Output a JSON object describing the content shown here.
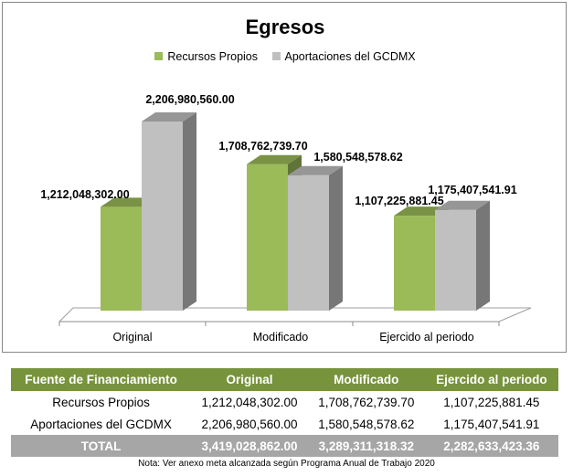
{
  "chart_data": {
    "type": "bar",
    "title": "Egresos",
    "categories": [
      "Original",
      "Modificado",
      "Ejercido al periodo"
    ],
    "series": [
      {
        "name": "Recursos Propios",
        "color": "#9bbb59",
        "values": [
          1212048302.0,
          1708762739.7,
          1107225881.45
        ],
        "labels": [
          "1,212,048,302.00",
          "1,708,762,739.70",
          "1,107,225,881.45"
        ]
      },
      {
        "name": "Aportaciones del GCDMX",
        "color": "#c0c0c0",
        "values": [
          2206980560.0,
          1580548578.62,
          1175407541.91
        ],
        "labels": [
          "2,206,980,560.00",
          "1,580,548,578.62",
          "1,175,407,541.91"
        ]
      }
    ],
    "ylim": [
      0,
      2400000000
    ],
    "grid": false,
    "legend_position": "top"
  },
  "table": {
    "headers": [
      "Fuente de Financiamiento",
      "Original",
      "Modificado",
      "Ejercido al periodo"
    ],
    "rows": [
      [
        "Recursos Propios",
        "1,212,048,302.00",
        "1,708,762,739.70",
        "1,107,225,881.45"
      ],
      [
        "Aportaciones del GCDMX",
        "2,206,980,560.00",
        "1,580,548,578.62",
        "1,175,407,541.91"
      ]
    ],
    "total": [
      "TOTAL",
      "3,419,028,862.00",
      "3,289,311,318.32",
      "2,282,633,423.36"
    ],
    "header_color": "#77933c",
    "total_color": "#a6a6a6"
  },
  "note": "Nota: Ver anexo meta alcanzada según Programa Anual de Trabajo 2020"
}
